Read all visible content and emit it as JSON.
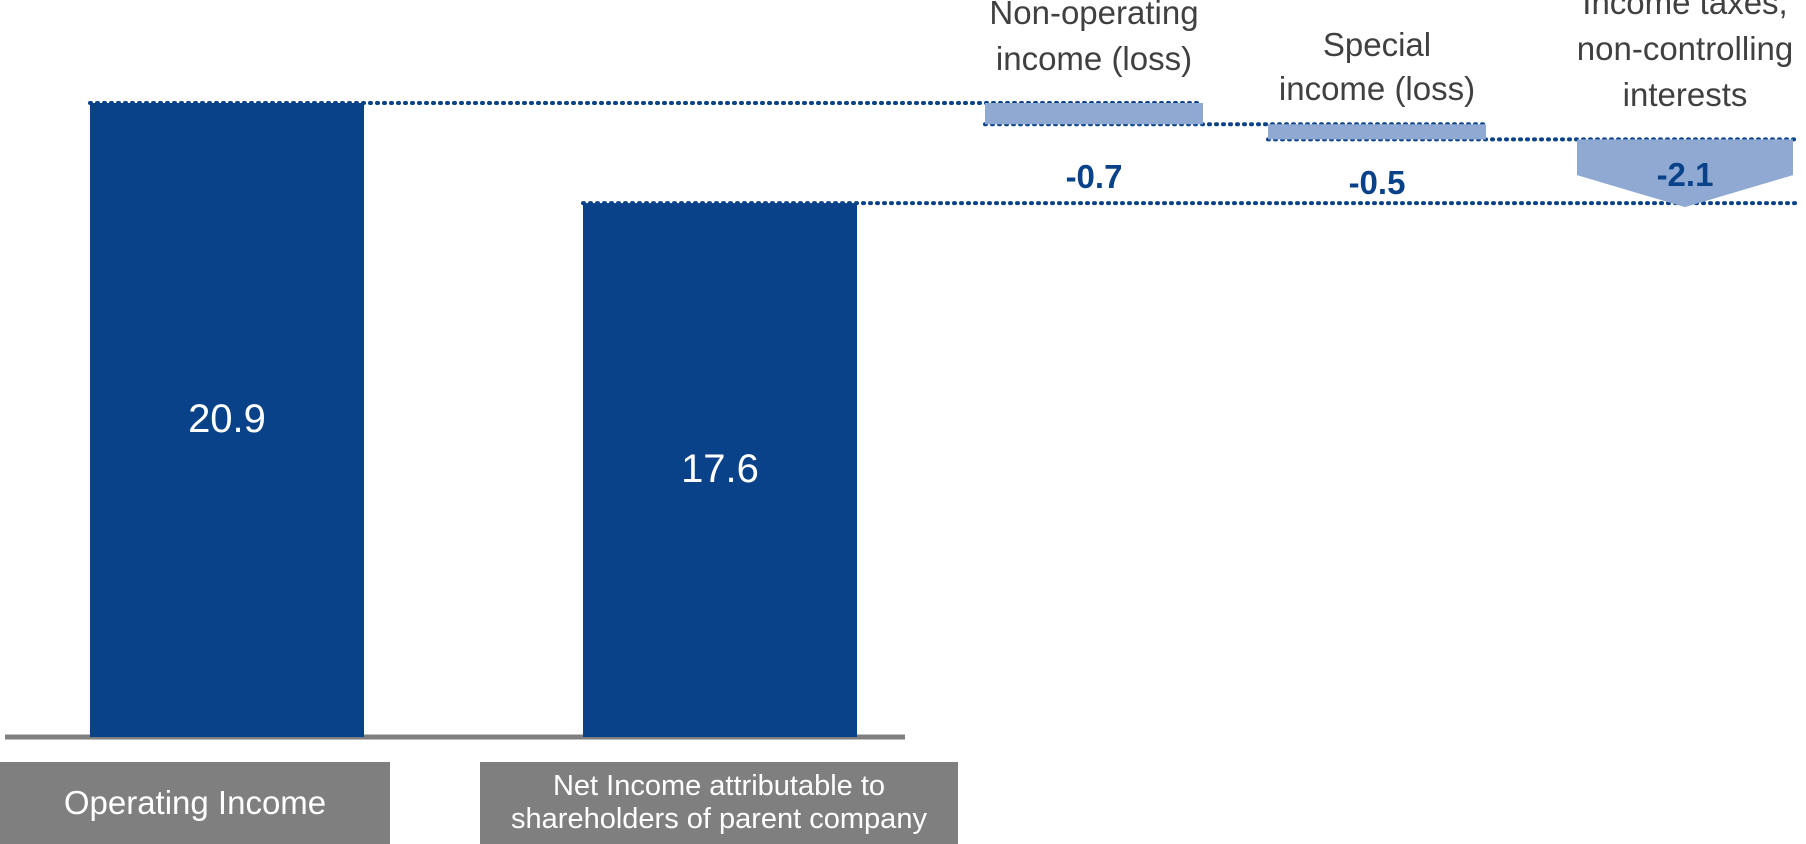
{
  "chart_data": {
    "type": "bar",
    "subtype": "waterfall",
    "bars": [
      {
        "label": "Operating Income",
        "value": 20.9,
        "kind": "total"
      },
      {
        "label": "Net Income attributable to shareholders of parent company",
        "value": 17.6,
        "kind": "total"
      }
    ],
    "adjustments": [
      {
        "label": [
          "Non-operating",
          "income (loss)"
        ],
        "value": -0.7,
        "display": "-0.7"
      },
      {
        "label": [
          "Special",
          "income (loss)"
        ],
        "value": -0.5,
        "display": "-0.5"
      },
      {
        "label": [
          "Income taxes,",
          "non-controlling",
          "interests"
        ],
        "value": -2.1,
        "display": "-2.1"
      }
    ],
    "total_labels": [
      "20.9",
      "17.6"
    ],
    "category_labels": {
      "operating": "Operating Income",
      "net_line1": "Net Income attributable to",
      "net_line2": "shareholders of parent company"
    },
    "ylim": [
      0,
      20.9
    ],
    "grid": false,
    "colors": {
      "total_bar": "#0a4289",
      "adjustment_bar": "#8fa9d3",
      "dotted_line": "#0a4289",
      "value_label_total": "#ffffff",
      "value_label_adjustment": "#0a4289",
      "axis": "#7f7f7f",
      "category_box": "#7f7f7f"
    }
  }
}
